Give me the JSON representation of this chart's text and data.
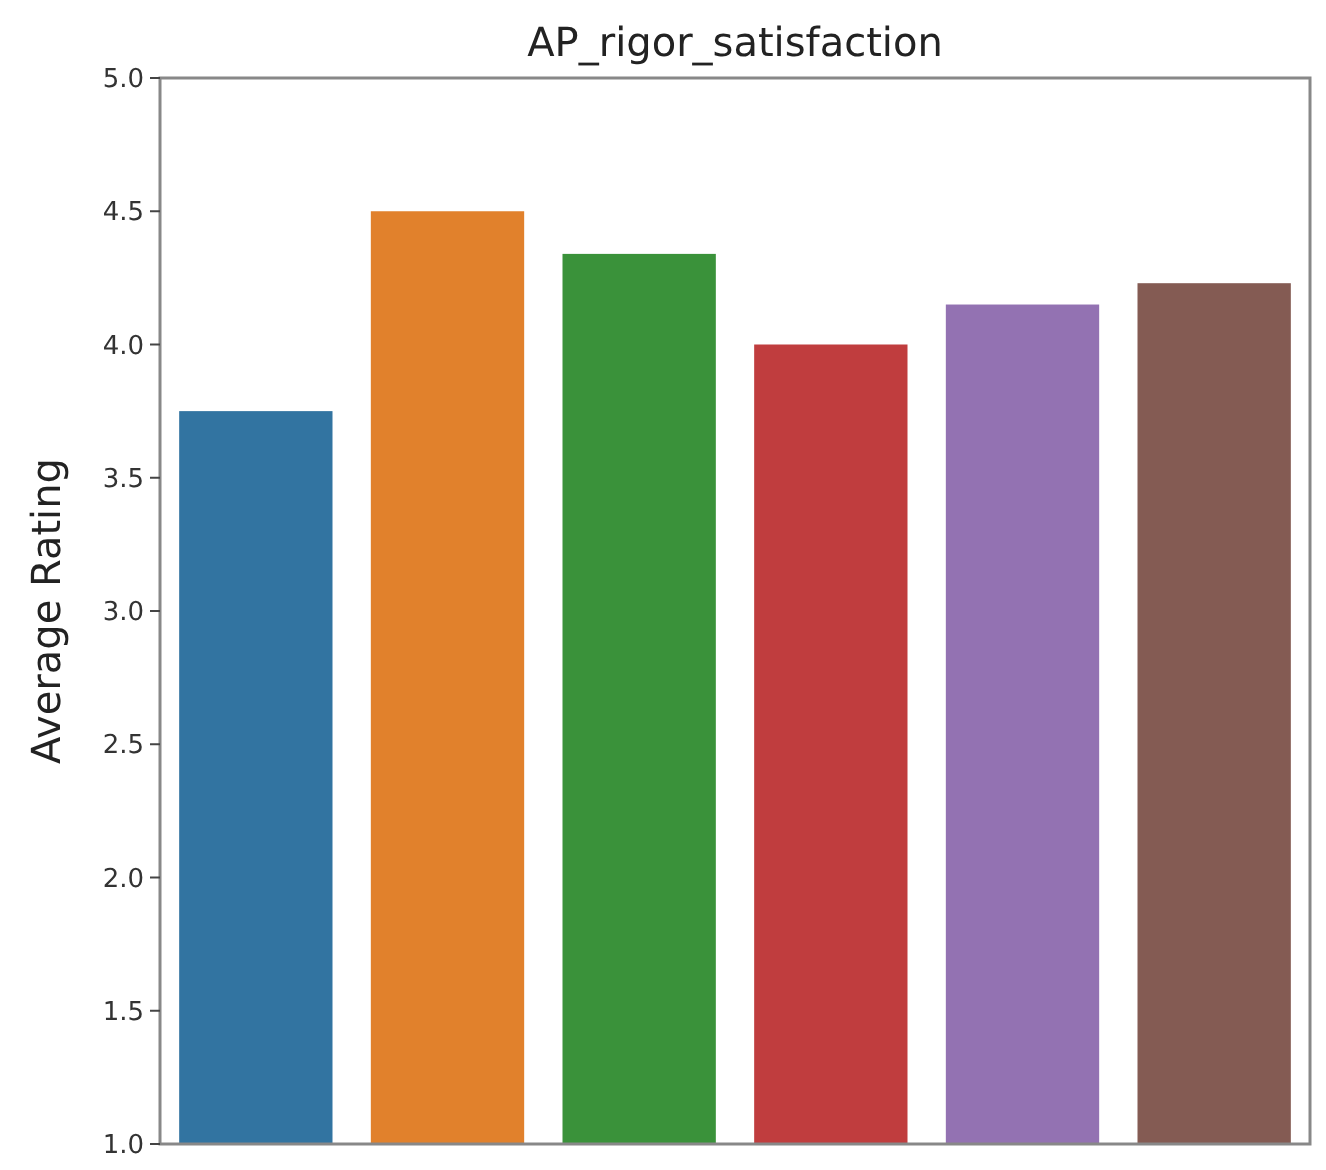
{
  "chart_data": {
    "type": "bar",
    "title": "AP_rigor_satisfaction",
    "ylabel": "Average Rating",
    "categories": [
      null,
      null,
      null,
      null,
      null,
      null
    ],
    "values": [
      3.75,
      4.5,
      4.34,
      4.0,
      4.15,
      4.23
    ],
    "colors": [
      "#3274a1",
      "#e1812c",
      "#3a923a",
      "#c03d3e",
      "#9372b2",
      "#845b53"
    ],
    "ylim": [
      1.0,
      5.0
    ],
    "yticks": [
      {
        "value": 1,
        "label": "1.0"
      },
      {
        "value": 1.5,
        "label": "1.5"
      },
      {
        "value": 2,
        "label": "2.0"
      },
      {
        "value": 2.5,
        "label": "2.5"
      },
      {
        "value": 3,
        "label": "3.0"
      },
      {
        "value": 3.5,
        "label": "3.5"
      },
      {
        "value": 4,
        "label": "4.0"
      },
      {
        "value": 4.5,
        "label": "4.5"
      },
      {
        "value": 5,
        "label": "5.0"
      }
    ],
    "grid": false
  }
}
